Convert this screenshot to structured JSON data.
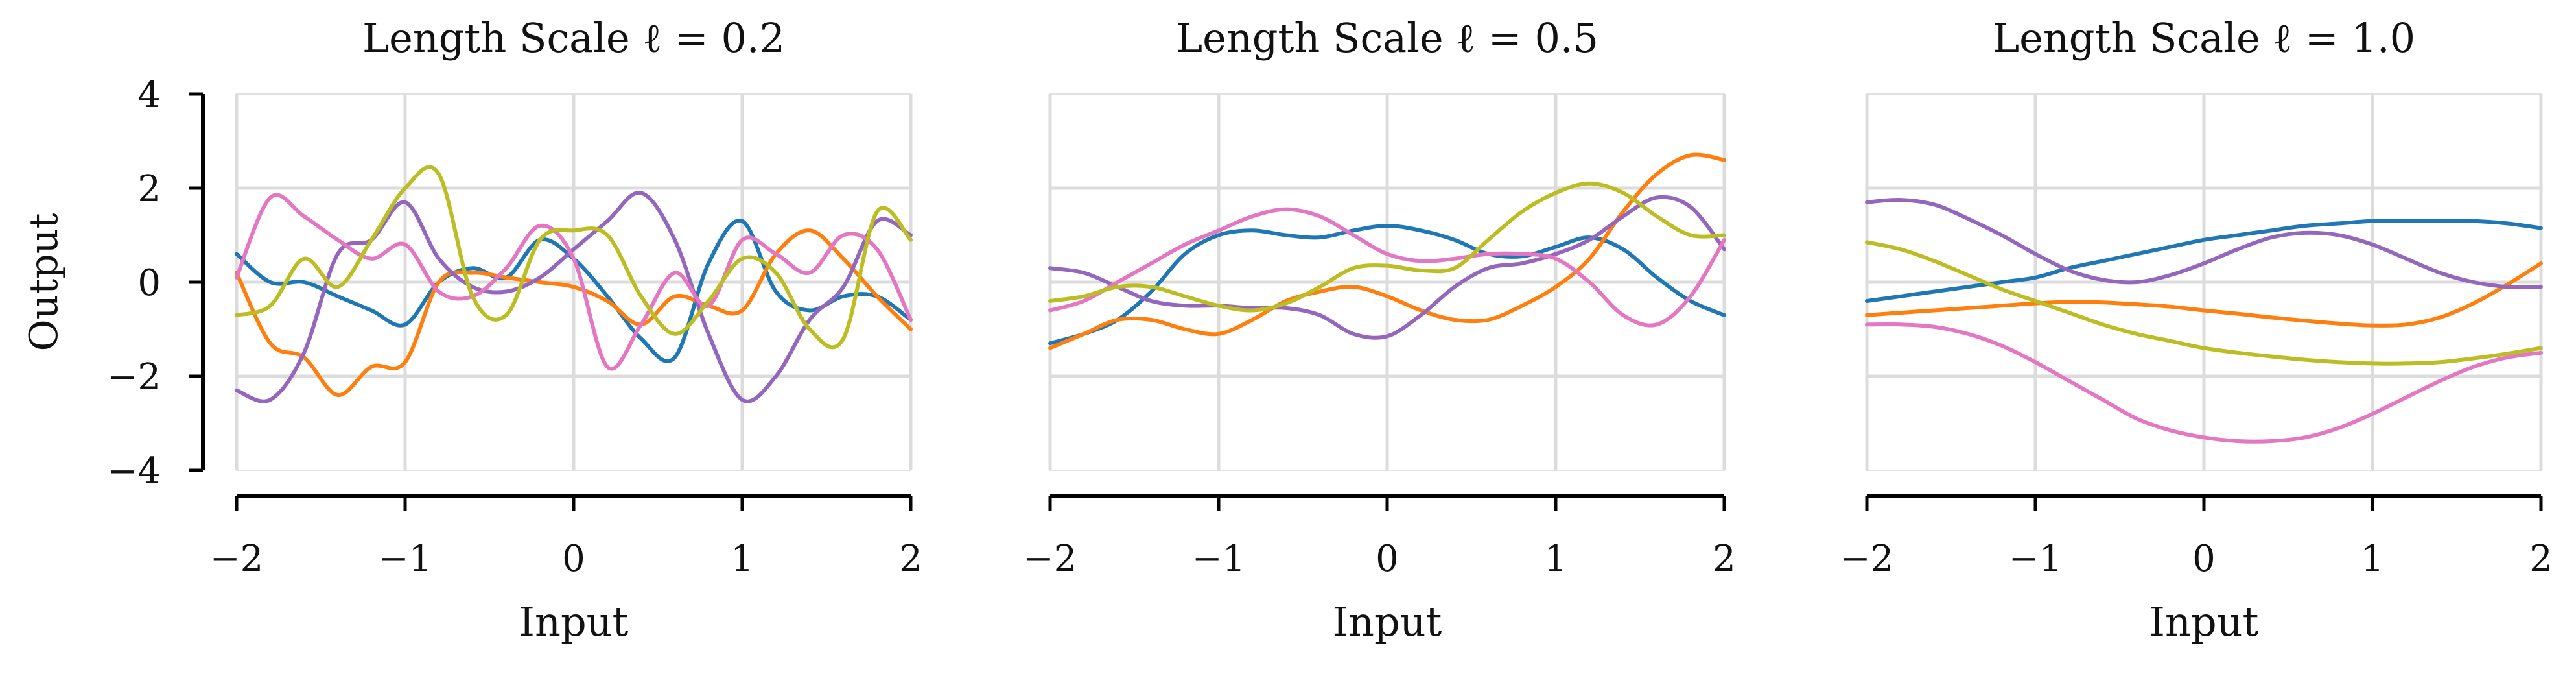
{
  "figure": {
    "shared_ylabel": "Output"
  },
  "chart_data": [
    {
      "type": "line",
      "title": "Length Scale ℓ = 0.2",
      "xlabel": "Input",
      "ylabel": "Output",
      "xlim": [
        -2,
        2
      ],
      "ylim": [
        -4,
        4
      ],
      "xticks": [
        -2,
        -1,
        0,
        1,
        2
      ],
      "xtick_labels": [
        "−2",
        "−1",
        "0",
        "1",
        "2"
      ],
      "yticks": [
        -4,
        -2,
        0,
        2,
        4
      ],
      "ytick_labels": [
        "−4",
        "−2",
        "0",
        "2",
        "4"
      ],
      "grid": true,
      "x": [
        -2.0,
        -1.8,
        -1.6,
        -1.4,
        -1.2,
        -1.0,
        -0.8,
        -0.6,
        -0.4,
        -0.2,
        0.0,
        0.2,
        0.4,
        0.6,
        0.8,
        1.0,
        1.2,
        1.4,
        1.6,
        1.8,
        2.0
      ],
      "series": [
        {
          "color": "#1f77b4",
          "values": [
            0.6,
            0.0,
            0.0,
            -0.3,
            -0.6,
            -0.9,
            0.0,
            0.3,
            0.1,
            0.9,
            0.5,
            -0.3,
            -1.2,
            -1.6,
            0.4,
            1.3,
            -0.2,
            -0.6,
            -0.3,
            -0.3,
            -0.8
          ]
        },
        {
          "color": "#ff7f0e",
          "values": [
            0.2,
            -1.3,
            -1.6,
            -2.4,
            -1.8,
            -1.7,
            0.0,
            0.2,
            0.1,
            0.0,
            -0.1,
            -0.4,
            -0.9,
            -0.3,
            -0.5,
            -0.6,
            0.6,
            1.1,
            0.5,
            -0.3,
            -1.0
          ]
        },
        {
          "color": "#9467bd",
          "values": [
            -2.3,
            -2.5,
            -1.5,
            0.6,
            0.9,
            1.7,
            0.5,
            -0.1,
            -0.2,
            0.1,
            0.7,
            1.3,
            1.9,
            0.9,
            -1.1,
            -2.5,
            -2.0,
            -0.8,
            -0.1,
            1.3,
            1.0
          ]
        },
        {
          "color": "#e377c2",
          "values": [
            0.1,
            1.8,
            1.4,
            0.9,
            0.5,
            0.8,
            -0.2,
            -0.3,
            0.3,
            1.2,
            0.5,
            -1.8,
            -0.9,
            0.2,
            -0.5,
            0.9,
            0.6,
            0.2,
            1.0,
            0.7,
            -0.8
          ]
        },
        {
          "color": "#bcbd22",
          "values": [
            -0.7,
            -0.5,
            0.5,
            -0.1,
            0.9,
            2.0,
            2.3,
            -0.3,
            -0.7,
            0.9,
            1.1,
            1.0,
            -0.3,
            -1.1,
            -0.4,
            0.5,
            0.2,
            -1.0,
            -1.2,
            1.5,
            0.9
          ]
        }
      ]
    },
    {
      "type": "line",
      "title": "Length Scale ℓ = 0.5",
      "xlabel": "Input",
      "ylabel": "",
      "xlim": [
        -2,
        2
      ],
      "ylim": [
        -4,
        4
      ],
      "xticks": [
        -2,
        -1,
        0,
        1,
        2
      ],
      "xtick_labels": [
        "−2",
        "−1",
        "0",
        "1",
        "2"
      ],
      "yticks": [],
      "ytick_labels": [],
      "grid": true,
      "x": [
        -2.0,
        -1.8,
        -1.6,
        -1.4,
        -1.2,
        -1.0,
        -0.8,
        -0.6,
        -0.4,
        -0.2,
        0.0,
        0.2,
        0.4,
        0.6,
        0.8,
        1.0,
        1.2,
        1.4,
        1.6,
        1.8,
        2.0
      ],
      "series": [
        {
          "color": "#1f77b4",
          "values": [
            -1.3,
            -1.1,
            -0.8,
            -0.2,
            0.6,
            1.0,
            1.1,
            1.0,
            0.95,
            1.1,
            1.2,
            1.1,
            0.9,
            0.6,
            0.55,
            0.75,
            0.95,
            0.7,
            0.1,
            -0.4,
            -0.7
          ]
        },
        {
          "color": "#ff7f0e",
          "values": [
            -1.4,
            -1.1,
            -0.8,
            -0.8,
            -1.0,
            -1.1,
            -0.8,
            -0.4,
            -0.2,
            -0.1,
            -0.3,
            -0.6,
            -0.8,
            -0.8,
            -0.5,
            -0.1,
            0.5,
            1.5,
            2.3,
            2.7,
            2.6
          ]
        },
        {
          "color": "#9467bd",
          "values": [
            0.3,
            0.2,
            -0.1,
            -0.4,
            -0.5,
            -0.5,
            -0.55,
            -0.55,
            -0.7,
            -1.1,
            -1.15,
            -0.7,
            -0.1,
            0.3,
            0.4,
            0.6,
            0.9,
            1.4,
            1.8,
            1.6,
            0.7
          ]
        },
        {
          "color": "#e377c2",
          "values": [
            -0.6,
            -0.4,
            0.0,
            0.4,
            0.8,
            1.1,
            1.4,
            1.55,
            1.4,
            1.0,
            0.6,
            0.45,
            0.5,
            0.6,
            0.6,
            0.5,
            0.0,
            -0.7,
            -0.9,
            -0.3,
            0.9
          ]
        },
        {
          "color": "#bcbd22",
          "values": [
            -0.4,
            -0.3,
            -0.1,
            -0.1,
            -0.3,
            -0.5,
            -0.6,
            -0.45,
            -0.1,
            0.3,
            0.35,
            0.25,
            0.3,
            0.9,
            1.5,
            1.9,
            2.1,
            1.9,
            1.4,
            1.0,
            1.0
          ]
        }
      ]
    },
    {
      "type": "line",
      "title": "Length Scale ℓ = 1.0",
      "xlabel": "Input",
      "ylabel": "",
      "xlim": [
        -2,
        2
      ],
      "ylim": [
        -4,
        4
      ],
      "xticks": [
        -2,
        -1,
        0,
        1,
        2
      ],
      "xtick_labels": [
        "−2",
        "−1",
        "0",
        "1",
        "2"
      ],
      "yticks": [],
      "ytick_labels": [],
      "grid": true,
      "x": [
        -2.0,
        -1.8,
        -1.6,
        -1.4,
        -1.2,
        -1.0,
        -0.8,
        -0.6,
        -0.4,
        -0.2,
        0.0,
        0.2,
        0.4,
        0.6,
        0.8,
        1.0,
        1.2,
        1.4,
        1.6,
        1.8,
        2.0
      ],
      "series": [
        {
          "color": "#1f77b4",
          "values": [
            -0.4,
            -0.3,
            -0.2,
            -0.1,
            0.0,
            0.1,
            0.3,
            0.45,
            0.6,
            0.75,
            0.9,
            1.0,
            1.1,
            1.2,
            1.25,
            1.3,
            1.3,
            1.3,
            1.3,
            1.25,
            1.15
          ]
        },
        {
          "color": "#ff7f0e",
          "values": [
            -0.7,
            -0.65,
            -0.6,
            -0.55,
            -0.5,
            -0.45,
            -0.42,
            -0.43,
            -0.47,
            -0.52,
            -0.6,
            -0.67,
            -0.75,
            -0.82,
            -0.88,
            -0.92,
            -0.9,
            -0.75,
            -0.45,
            -0.05,
            0.4
          ]
        },
        {
          "color": "#9467bd",
          "values": [
            1.7,
            1.75,
            1.65,
            1.35,
            1.0,
            0.6,
            0.25,
            0.05,
            0.0,
            0.15,
            0.4,
            0.7,
            0.95,
            1.05,
            1.0,
            0.8,
            0.5,
            0.2,
            0.0,
            -0.1,
            -0.1
          ]
        },
        {
          "color": "#e377c2",
          "values": [
            -0.9,
            -0.9,
            -0.95,
            -1.1,
            -1.35,
            -1.7,
            -2.1,
            -2.5,
            -2.9,
            -3.15,
            -3.3,
            -3.38,
            -3.38,
            -3.3,
            -3.1,
            -2.8,
            -2.45,
            -2.1,
            -1.8,
            -1.6,
            -1.5
          ]
        },
        {
          "color": "#bcbd22",
          "values": [
            0.85,
            0.7,
            0.45,
            0.15,
            -0.15,
            -0.4,
            -0.65,
            -0.9,
            -1.1,
            -1.25,
            -1.4,
            -1.5,
            -1.58,
            -1.65,
            -1.7,
            -1.73,
            -1.73,
            -1.7,
            -1.62,
            -1.52,
            -1.4
          ]
        }
      ]
    }
  ]
}
